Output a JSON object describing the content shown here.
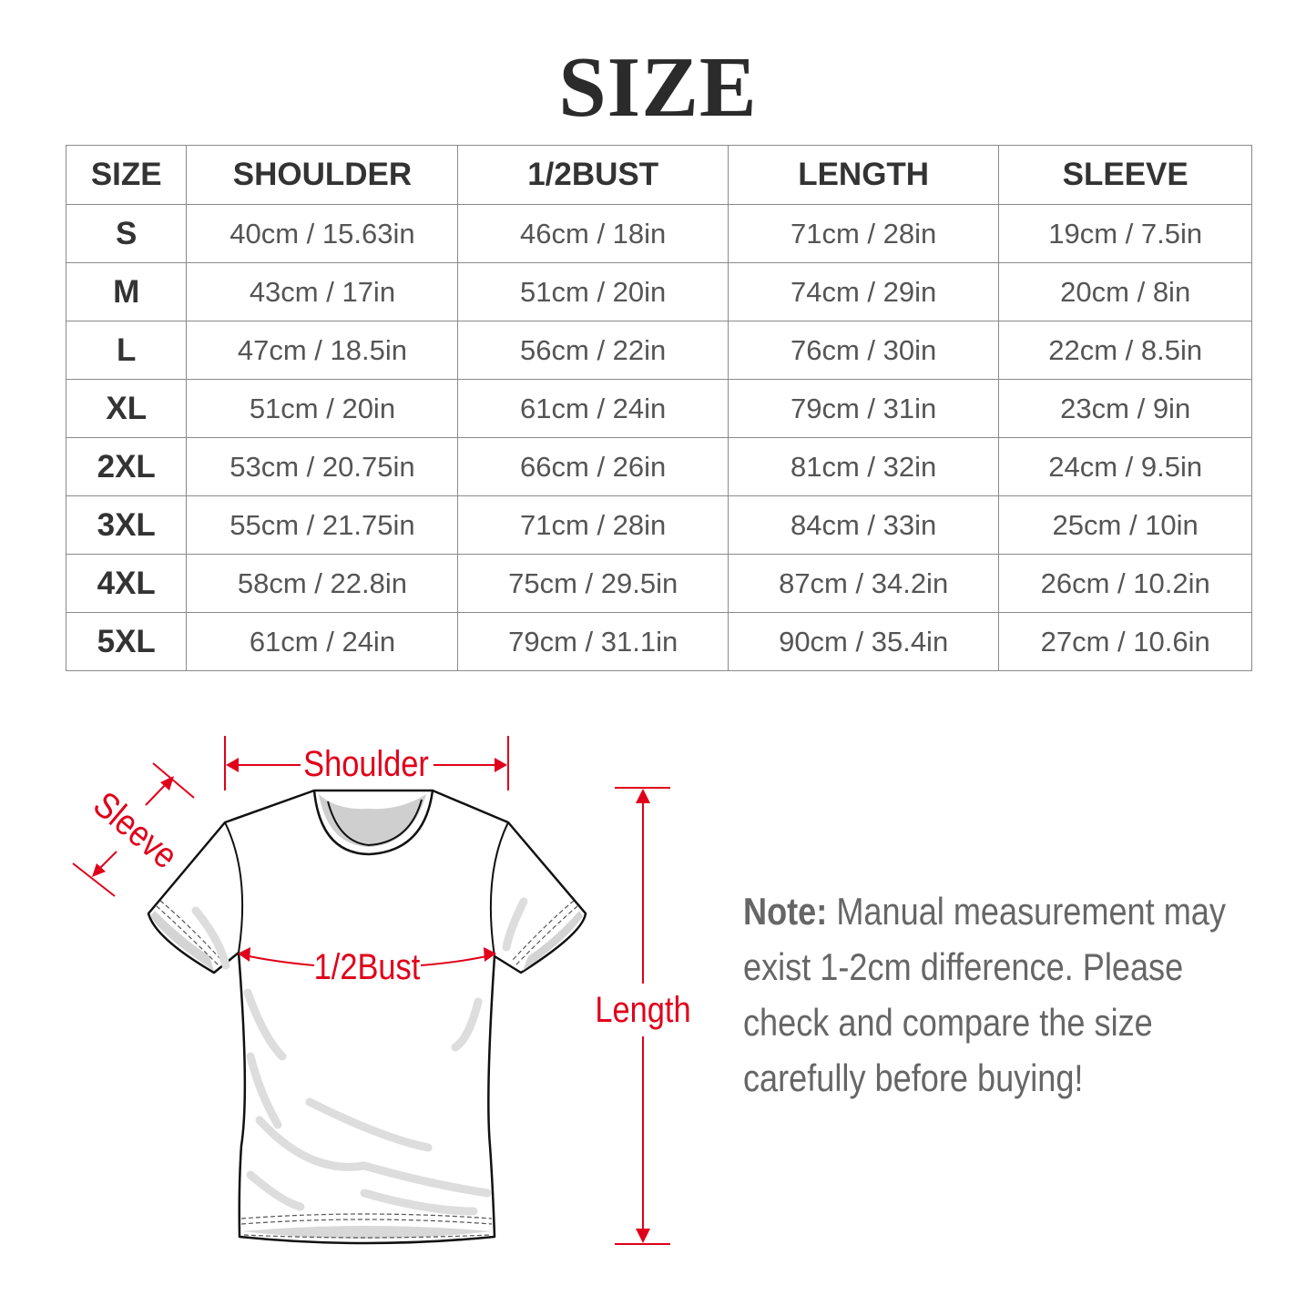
{
  "title": "SIZE",
  "table": {
    "headers": [
      "SIZE",
      "SHOULDER",
      "1/2BUST",
      "LENGTH",
      "SLEEVE"
    ],
    "rows": [
      [
        "S",
        "40cm / 15.63in",
        "46cm / 18in",
        "71cm / 28in",
        "19cm / 7.5in"
      ],
      [
        "M",
        "43cm / 17in",
        "51cm / 20in",
        "74cm / 29in",
        "20cm / 8in"
      ],
      [
        "L",
        "47cm / 18.5in",
        "56cm / 22in",
        "76cm / 30in",
        "22cm / 8.5in"
      ],
      [
        "XL",
        "51cm / 20in",
        "61cm / 24in",
        "79cm / 31in",
        "23cm / 9in"
      ],
      [
        "2XL",
        "53cm / 20.75in",
        "66cm / 26in",
        "81cm / 32in",
        "24cm / 9.5in"
      ],
      [
        "3XL",
        "55cm / 21.75in",
        "71cm / 28in",
        "84cm / 33in",
        "25cm / 10in"
      ],
      [
        "4XL",
        "58cm / 22.8in",
        "75cm / 29.5in",
        "87cm / 34.2in",
        "26cm / 10.2in"
      ],
      [
        "5XL",
        "61cm / 24in",
        "79cm / 31.1in",
        "90cm / 35.4in",
        "27cm / 10.6in"
      ]
    ]
  },
  "diagram": {
    "labels": {
      "shoulder": "Shoulder",
      "sleeve": "Sleeve",
      "bust": "1/2Bust",
      "length": "Length"
    },
    "accent_color": "#e0001a"
  },
  "note": {
    "label": "Note:",
    "text": " Manual measurement may exist 1-2cm difference. Please check and compare the size carefully before buying!"
  }
}
